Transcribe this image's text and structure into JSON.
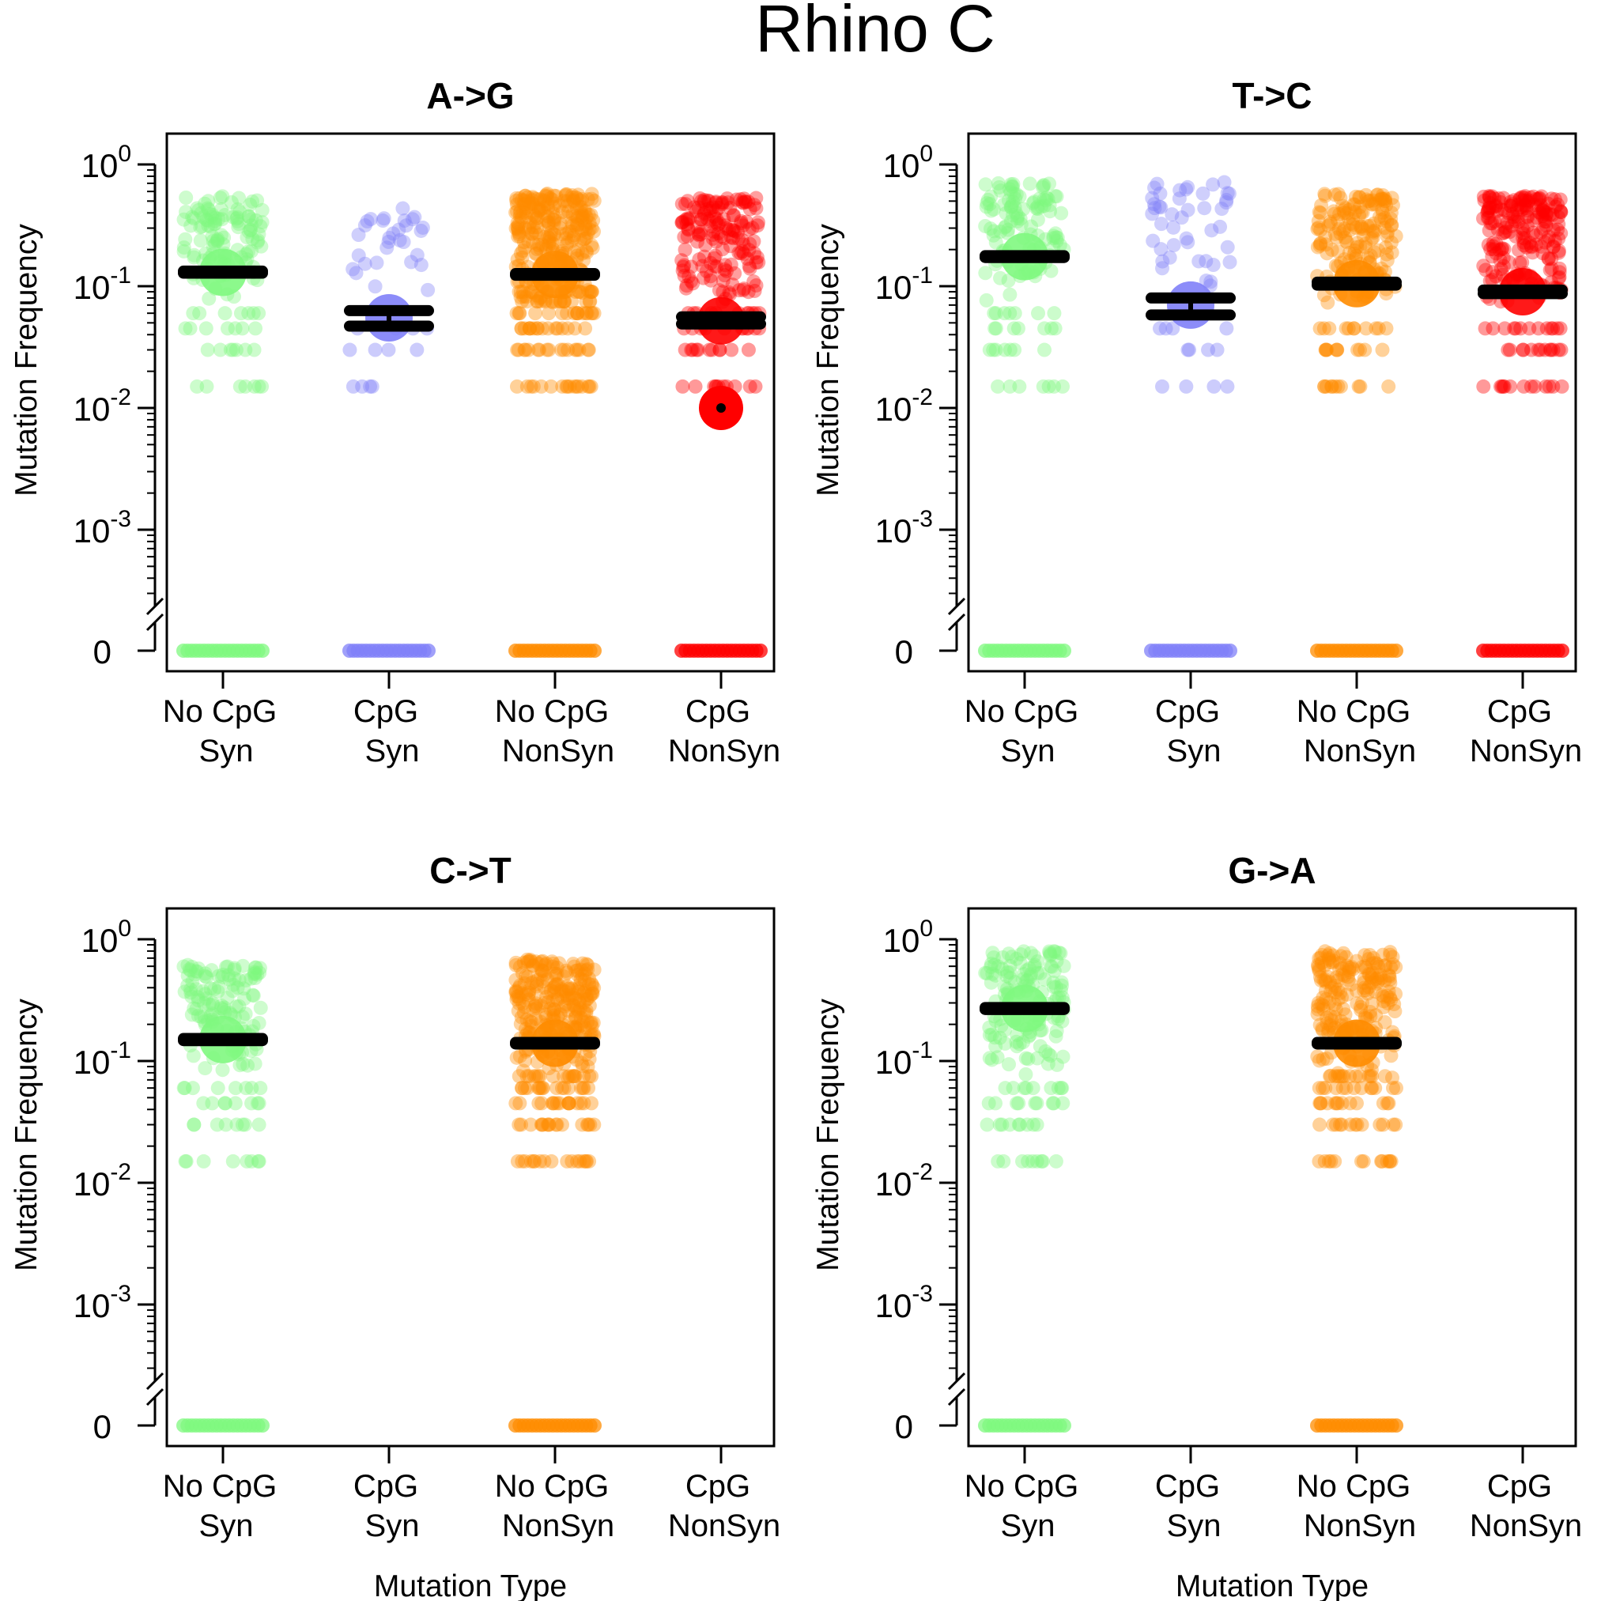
{
  "title": "Rhino C",
  "colors": {
    "No CpG Syn": "#7ff87f",
    "CpG Syn": "#8080f8",
    "No CpG NonSyn": "#ff8c00",
    "CpG NonSyn": "#ff0000",
    "summary_bar": "#000000"
  },
  "chart_data": [
    {
      "type": "scatter",
      "title": "A->G",
      "xlabel": "",
      "ylabel": "Mutation Frequency",
      "y_scale": "log",
      "ylim": [
        0.001,
        1
      ],
      "yticks": [
        {
          "base": "10",
          "exp": "0"
        },
        {
          "base": "10",
          "exp": "-1"
        },
        {
          "base": "10",
          "exp": "-2"
        },
        {
          "base": "10",
          "exp": "-3"
        }
      ],
      "zero_label": "0",
      "categories": [
        {
          "line1": "No CpG",
          "line2": "Syn"
        },
        {
          "line1": "CpG",
          "line2": "Syn"
        },
        {
          "line1": "No CpG",
          "line2": "NonSyn"
        },
        {
          "line1": "CpG",
          "line2": "NonSyn"
        }
      ],
      "series": [
        {
          "category": "No CpG Syn",
          "present": true,
          "density": 110,
          "range": [
            0.015,
            0.55
          ],
          "discrete": [
            0.015,
            0.03,
            0.045,
            0.06
          ],
          "mean": 0.13,
          "err_low": 0.128,
          "err_high": 0.133
        },
        {
          "category": "CpG Syn",
          "present": true,
          "density": 30,
          "range": [
            0.015,
            0.45
          ],
          "discrete": [
            0.015,
            0.03,
            0.045
          ],
          "mean": 0.055,
          "err_low": 0.047,
          "err_high": 0.063
        },
        {
          "category": "No CpG NonSyn",
          "present": true,
          "density": 260,
          "range": [
            0.015,
            0.58
          ],
          "discrete": [
            0.015,
            0.03,
            0.045,
            0.06,
            0.075,
            0.09
          ],
          "mean": 0.125,
          "err_low": 0.123,
          "err_high": 0.127
        },
        {
          "category": "CpG NonSyn",
          "present": true,
          "density": 160,
          "range": [
            0.015,
            0.55
          ],
          "discrete": [
            0.015,
            0.03,
            0.045,
            0.06
          ],
          "mean": 0.052,
          "err_low": 0.049,
          "err_high": 0.056,
          "extra_point": 0.01
        }
      ]
    },
    {
      "type": "scatter",
      "title": "T->C",
      "xlabel": "",
      "ylabel": "Mutation Frequency",
      "y_scale": "log",
      "ylim": [
        0.001,
        1
      ],
      "yticks": [
        {
          "base": "10",
          "exp": "0"
        },
        {
          "base": "10",
          "exp": "-1"
        },
        {
          "base": "10",
          "exp": "-2"
        },
        {
          "base": "10",
          "exp": "-3"
        }
      ],
      "zero_label": "0",
      "categories": [
        {
          "line1": "No CpG",
          "line2": "Syn"
        },
        {
          "line1": "CpG",
          "line2": "Syn"
        },
        {
          "line1": "No CpG",
          "line2": "NonSyn"
        },
        {
          "line1": "CpG",
          "line2": "NonSyn"
        }
      ],
      "series": [
        {
          "category": "No CpG Syn",
          "present": true,
          "density": 110,
          "range": [
            0.015,
            0.7
          ],
          "discrete": [
            0.015,
            0.03,
            0.045,
            0.06
          ],
          "mean": 0.175,
          "err_low": 0.172,
          "err_high": 0.178
        },
        {
          "category": "CpG Syn",
          "present": true,
          "density": 45,
          "range": [
            0.015,
            0.75
          ],
          "discrete": [
            0.015,
            0.03,
            0.045
          ],
          "mean": 0.07,
          "err_low": 0.058,
          "err_high": 0.08
        },
        {
          "category": "No CpG NonSyn",
          "present": true,
          "density": 170,
          "range": [
            0.015,
            0.58
          ],
          "discrete": [
            0.015,
            0.03,
            0.045
          ],
          "mean": 0.105,
          "err_low": 0.102,
          "err_high": 0.108
        },
        {
          "category": "CpG NonSyn",
          "present": true,
          "density": 200,
          "range": [
            0.015,
            0.55
          ],
          "discrete": [
            0.015,
            0.03,
            0.045
          ],
          "mean": 0.09,
          "err_low": 0.087,
          "err_high": 0.093
        }
      ]
    },
    {
      "type": "scatter",
      "title": "C->T",
      "xlabel": "Mutation Type",
      "ylabel": "Mutation Frequency",
      "y_scale": "log",
      "ylim": [
        0.001,
        1
      ],
      "yticks": [
        {
          "base": "10",
          "exp": "0"
        },
        {
          "base": "10",
          "exp": "-1"
        },
        {
          "base": "10",
          "exp": "-2"
        },
        {
          "base": "10",
          "exp": "-3"
        }
      ],
      "zero_label": "0",
      "categories": [
        {
          "line1": "No CpG",
          "line2": "Syn"
        },
        {
          "line1": "CpG",
          "line2": "Syn"
        },
        {
          "line1": "No CpG",
          "line2": "NonSyn"
        },
        {
          "line1": "CpG",
          "line2": "NonSyn"
        }
      ],
      "series": [
        {
          "category": "No CpG Syn",
          "present": true,
          "density": 120,
          "range": [
            0.015,
            0.62
          ],
          "discrete": [
            0.015,
            0.03,
            0.045,
            0.06
          ],
          "mean": 0.15,
          "err_low": 0.147,
          "err_high": 0.153
        },
        {
          "category": "CpG Syn",
          "present": false
        },
        {
          "category": "No CpG NonSyn",
          "present": true,
          "density": 260,
          "range": [
            0.015,
            0.68
          ],
          "discrete": [
            0.015,
            0.03,
            0.045,
            0.06,
            0.075
          ],
          "mean": 0.14,
          "err_low": 0.138,
          "err_high": 0.142
        },
        {
          "category": "CpG NonSyn",
          "present": false
        }
      ]
    },
    {
      "type": "scatter",
      "title": "G->A",
      "xlabel": "Mutation Type",
      "ylabel": "Mutation Frequency",
      "y_scale": "log",
      "ylim": [
        0.001,
        1
      ],
      "yticks": [
        {
          "base": "10",
          "exp": "0"
        },
        {
          "base": "10",
          "exp": "-1"
        },
        {
          "base": "10",
          "exp": "-2"
        },
        {
          "base": "10",
          "exp": "-3"
        }
      ],
      "zero_label": "0",
      "categories": [
        {
          "line1": "No CpG",
          "line2": "Syn"
        },
        {
          "line1": "CpG",
          "line2": "Syn"
        },
        {
          "line1": "No CpG",
          "line2": "NonSyn"
        },
        {
          "line1": "CpG",
          "line2": "NonSyn"
        }
      ],
      "series": [
        {
          "category": "No CpG Syn",
          "present": true,
          "density": 140,
          "range": [
            0.015,
            0.8
          ],
          "discrete": [
            0.015,
            0.03,
            0.045,
            0.06
          ],
          "mean": 0.27,
          "err_low": 0.265,
          "err_high": 0.275
        },
        {
          "category": "CpG Syn",
          "present": false
        },
        {
          "category": "No CpG NonSyn",
          "present": true,
          "density": 200,
          "range": [
            0.015,
            0.8
          ],
          "discrete": [
            0.015,
            0.03,
            0.045,
            0.06,
            0.075
          ],
          "mean": 0.14,
          "err_low": 0.138,
          "err_high": 0.142
        },
        {
          "category": "CpG NonSyn",
          "present": false
        }
      ]
    }
  ]
}
